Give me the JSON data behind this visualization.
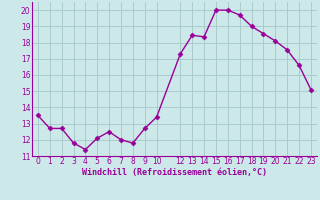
{
  "x": [
    0,
    1,
    2,
    3,
    4,
    5,
    6,
    7,
    8,
    9,
    10,
    12,
    13,
    14,
    15,
    16,
    17,
    18,
    19,
    20,
    21,
    22,
    23
  ],
  "y": [
    13.5,
    12.7,
    12.7,
    11.8,
    11.4,
    12.1,
    12.5,
    12.0,
    11.8,
    12.7,
    13.4,
    17.3,
    18.45,
    18.35,
    20.0,
    20.0,
    19.7,
    19.0,
    18.55,
    18.1,
    17.55,
    16.6,
    15.1
  ],
  "line_color": "#990099",
  "marker": "D",
  "markersize": 2.5,
  "linewidth": 1.0,
  "bg_color": "#cce8e8",
  "grid_color": "#aacccc",
  "xlabel": "Windchill (Refroidissement éolien,°C)",
  "xlabel_color": "#990099",
  "tick_color": "#990099",
  "xlim": [
    -0.5,
    23.5
  ],
  "ylim": [
    11,
    20.5
  ],
  "yticks": [
    11,
    12,
    13,
    14,
    15,
    16,
    17,
    18,
    19,
    20
  ],
  "xticks": [
    0,
    1,
    2,
    3,
    4,
    5,
    6,
    7,
    8,
    9,
    10,
    12,
    13,
    14,
    15,
    16,
    17,
    18,
    19,
    20,
    21,
    22,
    23
  ],
  "spine_color": "#990099",
  "tick_fontsize": 5.5,
  "xlabel_fontsize": 6.0
}
